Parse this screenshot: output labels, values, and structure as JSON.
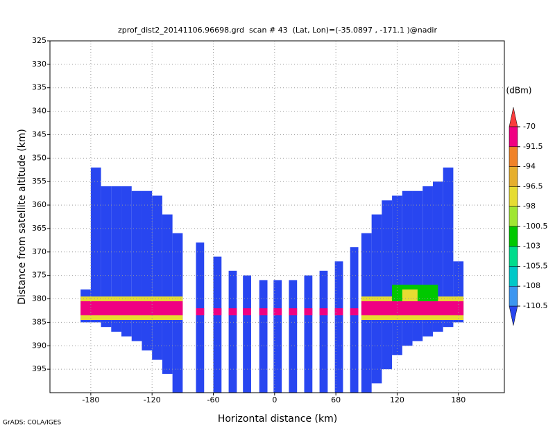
{
  "chart_data": {
    "type": "heatmap",
    "title": "zprof_dist2_20141106.96698.grd  scan # 43  (Lat, Lon)=(-35.0897 , -171.1 )@nadir",
    "x_label": "Horizontal distance (km)",
    "y_label": "Distance from satellite altitude (km)",
    "footer": "GrADS: COLA/IGES",
    "colorbar_title": "(dBm)",
    "xlim": [
      -220,
      225
    ],
    "ylim": [
      400,
      325
    ],
    "xticks": [
      -180,
      -120,
      -60,
      0,
      60,
      120,
      180
    ],
    "yticks": [
      325,
      330,
      335,
      340,
      345,
      350,
      355,
      360,
      365,
      370,
      375,
      380,
      385,
      390,
      395
    ],
    "grid": true,
    "levels": [
      -110.5,
      -108,
      -105.5,
      -103,
      -100.5,
      -98,
      -96.5,
      -94,
      -91.5,
      -70
    ],
    "colors": [
      "#2846f0",
      "#3c96f0",
      "#00c8c8",
      "#00dc8c",
      "#00c800",
      "#a0e632",
      "#e6dc32",
      "#e6af2d",
      "#f08228",
      "#f00082",
      "#fa3c3c"
    ],
    "cells": [
      {
        "x0": -190,
        "x1": -180,
        "y0": 378,
        "y1": 385,
        "value": -112
      },
      {
        "x0": -180,
        "x1": -170,
        "y0": 352,
        "y1": 385,
        "value": -112
      },
      {
        "x0": -170,
        "x1": -160,
        "y0": 356,
        "y1": 386,
        "value": -112
      },
      {
        "x0": -160,
        "x1": -150,
        "y0": 356,
        "y1": 387,
        "value": -112
      },
      {
        "x0": -150,
        "x1": -140,
        "y0": 356,
        "y1": 388,
        "value": -112
      },
      {
        "x0": -140,
        "x1": -130,
        "y0": 357,
        "y1": 389,
        "value": -112
      },
      {
        "x0": -130,
        "x1": -120,
        "y0": 357,
        "y1": 391,
        "value": -112
      },
      {
        "x0": -120,
        "x1": -110,
        "y0": 358,
        "y1": 393,
        "value": -112
      },
      {
        "x0": -110,
        "x1": -100,
        "y0": 362,
        "y1": 396,
        "value": -112
      },
      {
        "x0": -100,
        "x1": -90,
        "y0": 366,
        "y1": 400,
        "value": -112
      },
      {
        "x0": -77,
        "x1": -69,
        "y0": 368,
        "y1": 400,
        "value": -112
      },
      {
        "x0": -60,
        "x1": -52,
        "y0": 371,
        "y1": 400,
        "value": -112
      },
      {
        "x0": -45,
        "x1": -37,
        "y0": 374,
        "y1": 400,
        "value": -112
      },
      {
        "x0": -31,
        "x1": -23,
        "y0": 375,
        "y1": 400,
        "value": -112
      },
      {
        "x0": -15,
        "x1": -7,
        "y0": 376,
        "y1": 400,
        "value": -112
      },
      {
        "x0": -1,
        "x1": 7,
        "y0": 376,
        "y1": 400,
        "value": -112
      },
      {
        "x0": 14,
        "x1": 22,
        "y0": 376,
        "y1": 400,
        "value": -112
      },
      {
        "x0": 29,
        "x1": 37,
        "y0": 375,
        "y1": 400,
        "value": -112
      },
      {
        "x0": 44,
        "x1": 52,
        "y0": 374,
        "y1": 400,
        "value": -112
      },
      {
        "x0": 59,
        "x1": 67,
        "y0": 372,
        "y1": 400,
        "value": -112
      },
      {
        "x0": 74,
        "x1": 82,
        "y0": 369,
        "y1": 400,
        "value": -112
      },
      {
        "x0": 85,
        "x1": 95,
        "y0": 366,
        "y1": 400,
        "value": -112
      },
      {
        "x0": 95,
        "x1": 105,
        "y0": 362,
        "y1": 398,
        "value": -112
      },
      {
        "x0": 105,
        "x1": 115,
        "y0": 359,
        "y1": 395,
        "value": -112
      },
      {
        "x0": 115,
        "x1": 125,
        "y0": 358,
        "y1": 392,
        "value": -112
      },
      {
        "x0": 125,
        "x1": 135,
        "y0": 357,
        "y1": 390,
        "value": -112
      },
      {
        "x0": 135,
        "x1": 145,
        "y0": 357,
        "y1": 389,
        "value": -112
      },
      {
        "x0": 145,
        "x1": 155,
        "y0": 356,
        "y1": 388,
        "value": -112
      },
      {
        "x0": 155,
        "x1": 165,
        "y0": 355,
        "y1": 387,
        "value": -112
      },
      {
        "x0": 165,
        "x1": 175,
        "y0": 352,
        "y1": 386,
        "value": -112
      },
      {
        "x0": 175,
        "x1": 185,
        "y0": 372,
        "y1": 385,
        "value": -112
      },
      {
        "x0": -190,
        "x1": -90,
        "y0": 379.5,
        "y1": 384.5,
        "value": -97
      },
      {
        "x0": -190,
        "x1": -90,
        "y0": 380.5,
        "y1": 383.5,
        "value": -80
      },
      {
        "x0": 85,
        "x1": 185,
        "y0": 379.5,
        "y1": 384.5,
        "value": -97
      },
      {
        "x0": 85,
        "x1": 185,
        "y0": 380.5,
        "y1": 383.5,
        "value": -80
      },
      {
        "x0": 115,
        "x1": 160,
        "y0": 377,
        "y1": 380.5,
        "value": -102
      },
      {
        "x0": 125,
        "x1": 140,
        "y0": 378,
        "y1": 380.5,
        "value": -97
      },
      {
        "x0": -77,
        "x1": -69,
        "y0": 382,
        "y1": 383.5,
        "value": -80
      },
      {
        "x0": -60,
        "x1": -52,
        "y0": 382,
        "y1": 383.5,
        "value": -80
      },
      {
        "x0": -45,
        "x1": -37,
        "y0": 382,
        "y1": 383.5,
        "value": -80
      },
      {
        "x0": -31,
        "x1": -23,
        "y0": 382,
        "y1": 383.5,
        "value": -80
      },
      {
        "x0": -15,
        "x1": -7,
        "y0": 382,
        "y1": 383.5,
        "value": -80
      },
      {
        "x0": -1,
        "x1": 7,
        "y0": 382,
        "y1": 383.5,
        "value": -80
      },
      {
        "x0": 14,
        "x1": 22,
        "y0": 382,
        "y1": 383.5,
        "value": -80
      },
      {
        "x0": 29,
        "x1": 37,
        "y0": 382,
        "y1": 383.5,
        "value": -80
      },
      {
        "x0": 44,
        "x1": 52,
        "y0": 382,
        "y1": 383.5,
        "value": -80
      },
      {
        "x0": 59,
        "x1": 67,
        "y0": 382,
        "y1": 383.5,
        "value": -80
      },
      {
        "x0": 74,
        "x1": 82,
        "y0": 382,
        "y1": 383.5,
        "value": -80
      }
    ]
  }
}
